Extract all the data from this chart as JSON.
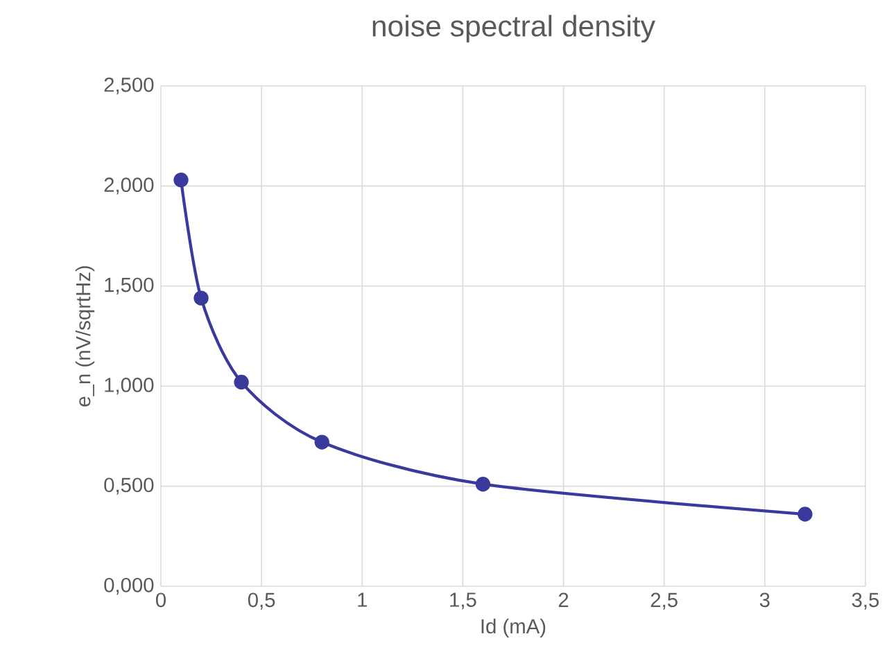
{
  "chart_data": {
    "type": "line",
    "title": "noise spectral density",
    "xlabel": "Id (mA)",
    "ylabel": "e_n (nV/sqrtHz)",
    "x": [
      0.1,
      0.2,
      0.4,
      0.8,
      1.6,
      3.2
    ],
    "series": [
      {
        "color": "#3a3a9c",
        "values": [
          2.03,
          1.44,
          1.02,
          0.72,
          0.51,
          0.36
        ]
      }
    ],
    "xlim": [
      0,
      3.5
    ],
    "ylim": [
      0,
      2.5
    ],
    "xticks": [
      {
        "value": 0,
        "label": "0"
      },
      {
        "value": 0.5,
        "label": "0,5"
      },
      {
        "value": 1,
        "label": "1"
      },
      {
        "value": 1.5,
        "label": "1,5"
      },
      {
        "value": 2,
        "label": "2"
      },
      {
        "value": 2.5,
        "label": "2,5"
      },
      {
        "value": 3,
        "label": "3"
      },
      {
        "value": 3.5,
        "label": "3,5"
      }
    ],
    "yticks": [
      {
        "value": 0,
        "label": "0,000"
      },
      {
        "value": 0.5,
        "label": "0,500"
      },
      {
        "value": 1,
        "label": "1,000"
      },
      {
        "value": 1.5,
        "label": "1,500"
      },
      {
        "value": 2,
        "label": "2,000"
      },
      {
        "value": 2.5,
        "label": "2,500"
      }
    ],
    "grid": true,
    "marker": "circle",
    "line_style": "solid"
  }
}
